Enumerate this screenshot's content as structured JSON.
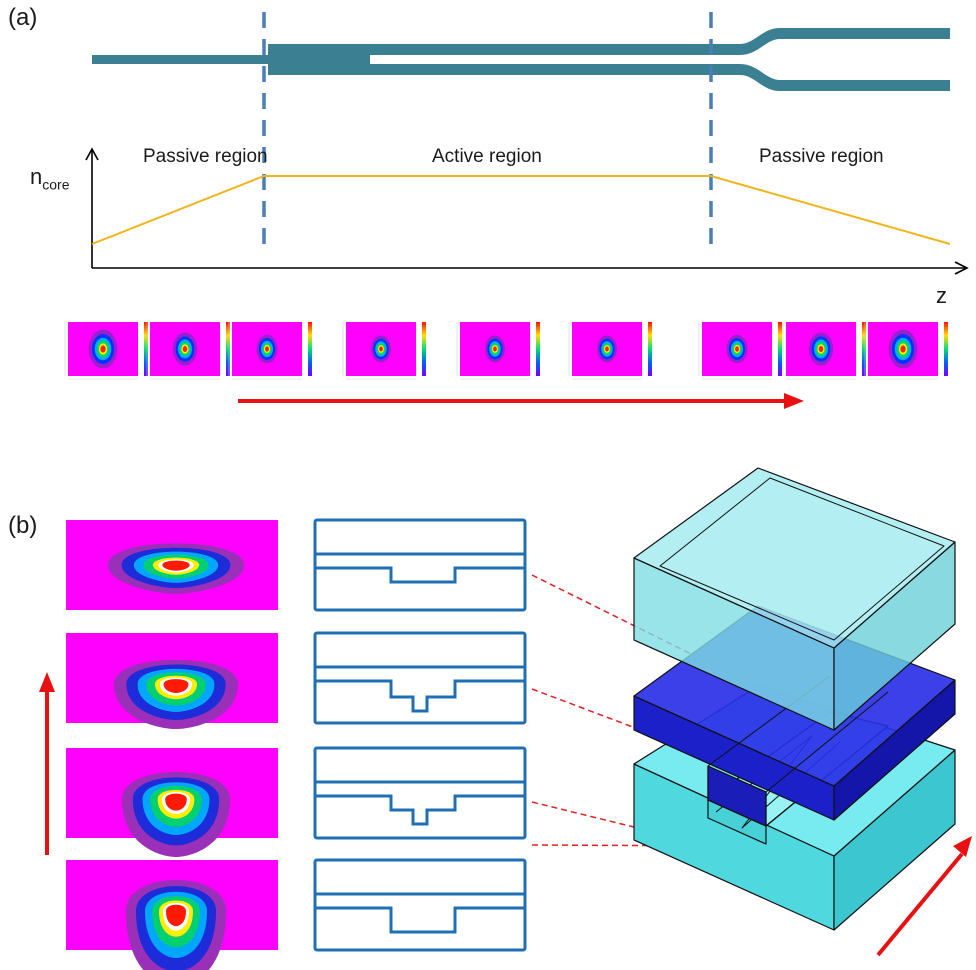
{
  "panel_a": {
    "label": "(a)",
    "regions": [
      "Passive region",
      "Active region",
      "Passive region"
    ],
    "y_axis_label_main": "n",
    "y_axis_label_sub": "core",
    "x_axis_label": "z",
    "mode_count": 9
  },
  "panel_b": {
    "label": "(b)",
    "mode_count": 4,
    "cross_section_count": 4
  },
  "colors": {
    "waveguide": "#3a7f92",
    "divider": "#4a7fb5",
    "index_profile": "#f2b41b",
    "arrow": "#e81010",
    "outline": "#1f6fb5",
    "mode_background": "#ff00ff",
    "cladding_top": "#8fe3e8",
    "active_layer": "#1e22d8",
    "substrate": "#5ee6ea"
  }
}
